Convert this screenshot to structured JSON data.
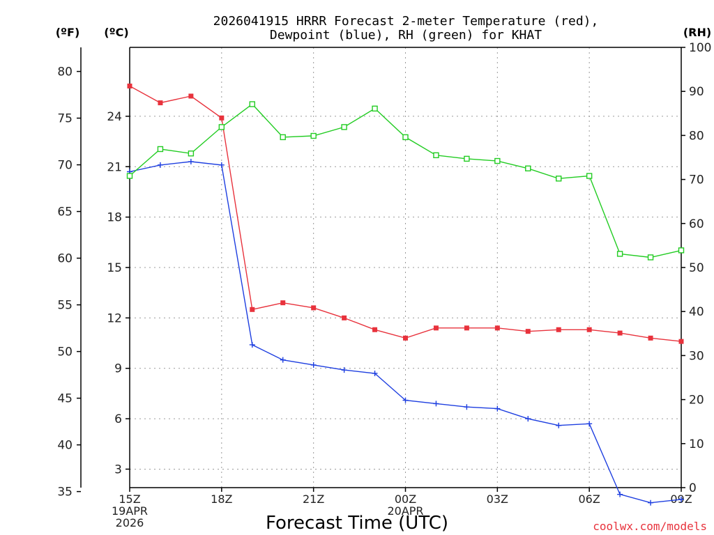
{
  "chart_data": {
    "type": "line",
    "title_lines": [
      "2026041915 HRRR Forecast 2-meter Temperature (red),",
      "Dewpoint (blue), RH (green) for KHAT"
    ],
    "units": {
      "f": "(ºF)",
      "c": "(ºC)",
      "rh": "(RH)"
    },
    "xlabel": "Forecast Time (UTC)",
    "credit": "coolwx.com/models",
    "x_hours": [
      0,
      1,
      2,
      3,
      4,
      5,
      6,
      7,
      8,
      9,
      10,
      11,
      12,
      13,
      14,
      15,
      16,
      17,
      18
    ],
    "x_ticks": [
      {
        "hour": 0,
        "lines": [
          "15Z",
          "19APR",
          "2026"
        ]
      },
      {
        "hour": 3,
        "lines": [
          "18Z"
        ]
      },
      {
        "hour": 6,
        "lines": [
          "21Z"
        ]
      },
      {
        "hour": 9,
        "lines": [
          "00Z",
          "20APR"
        ]
      },
      {
        "hour": 12,
        "lines": [
          "03Z"
        ]
      },
      {
        "hour": 15,
        "lines": [
          "06Z"
        ]
      },
      {
        "hour": 18,
        "lines": [
          "09Z"
        ]
      }
    ],
    "f_ticks": [
      80,
      75,
      70,
      65,
      60,
      55,
      50,
      45,
      40,
      35
    ],
    "c_ticks": [
      24,
      21,
      18,
      15,
      12,
      9,
      6,
      3
    ],
    "rh_ticks": [
      100,
      90,
      80,
      70,
      60,
      50,
      40,
      30,
      20,
      10,
      0
    ],
    "c_range": [
      1.9,
      28.1
    ],
    "rh_range": [
      0,
      100
    ],
    "series": [
      {
        "name": "Temperature",
        "axis": "C",
        "color": "#e8323c",
        "marker": "filled-square",
        "values": [
          25.8,
          24.8,
          25.2,
          23.9,
          12.5,
          12.9,
          12.6,
          12.0,
          11.3,
          10.8,
          11.4,
          11.4,
          11.4,
          11.2,
          11.3,
          11.3,
          11.1,
          10.8,
          10.6
        ]
      },
      {
        "name": "Dewpoint",
        "axis": "C",
        "color": "#1d3ee0",
        "marker": "plus",
        "values": [
          20.7,
          21.1,
          21.3,
          21.1,
          10.4,
          9.5,
          9.2,
          8.9,
          8.7,
          7.1,
          6.9,
          6.7,
          6.6,
          6.0,
          5.6,
          5.7,
          1.5,
          1.0,
          1.2
        ]
      },
      {
        "name": "RH",
        "axis": "RH",
        "color": "#22cc22",
        "marker": "open-square",
        "values": [
          70.8,
          76.9,
          75.9,
          81.9,
          87.1,
          79.6,
          79.9,
          81.9,
          86.1,
          79.6,
          75.5,
          74.7,
          74.2,
          72.5,
          70.2,
          70.8,
          53.1,
          52.3,
          53.9
        ]
      }
    ]
  }
}
